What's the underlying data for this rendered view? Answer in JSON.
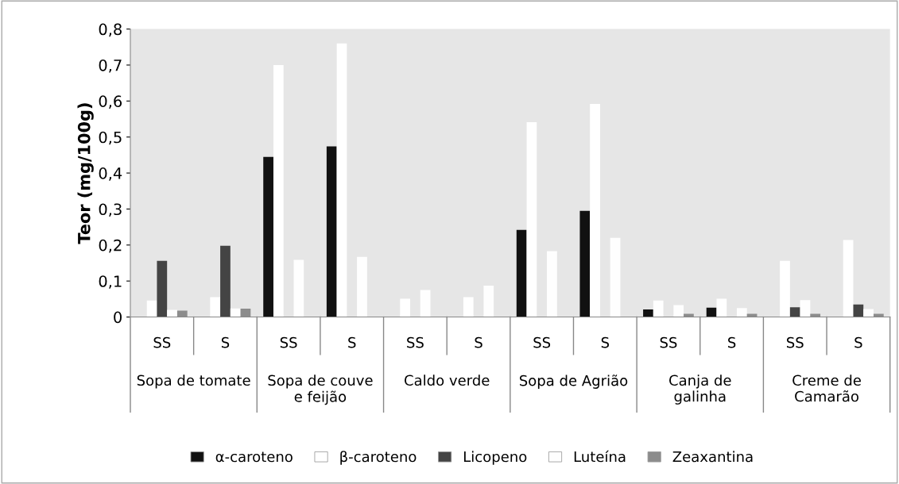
{
  "chart_data": {
    "type": "bar",
    "ylabel": "Teor (mg/100g)",
    "categories": [
      "SS",
      "S",
      "SS",
      "S",
      "SS",
      "S",
      "SS",
      "S",
      "SS",
      "S",
      "SS",
      "S"
    ],
    "annotations": [
      "Sopa de tomate",
      "Sopa de couve e feijão",
      "Caldo verde",
      "Sopa de Agrião",
      "Canja de galinha",
      "Creme de Camarão"
    ],
    "series": [
      {
        "name": "α-caroteno",
        "color": "#111111",
        "values": [
          null,
          null,
          0.445,
          0.474,
          null,
          null,
          0.242,
          0.295,
          0.021,
          0.026,
          null,
          null
        ]
      },
      {
        "name": "β-caroteno",
        "color": "#ffffff",
        "values": [
          0.046,
          0.055,
          0.7,
          0.76,
          0.051,
          0.055,
          0.541,
          0.592,
          0.046,
          0.051,
          0.156,
          0.214
        ]
      },
      {
        "name": "Licopeno",
        "color": "#444444",
        "values": [
          0.156,
          0.198,
          null,
          null,
          null,
          null,
          null,
          null,
          null,
          null,
          0.027,
          0.035
        ]
      },
      {
        "name": "Luteína",
        "color": "#fefefe",
        "values": [
          0.02,
          0.024,
          0.159,
          0.167,
          0.075,
          0.087,
          0.183,
          0.22,
          0.033,
          0.025,
          0.047,
          0.022
        ]
      },
      {
        "name": "Zeaxantina",
        "color": "#8c8c8c",
        "values": [
          0.018,
          0.023,
          null,
          null,
          null,
          null,
          null,
          null,
          0.009,
          0.009,
          0.009,
          0.009
        ]
      }
    ],
    "ylim": [
      0,
      0.8
    ],
    "yticks": [
      0,
      {
        "value": 0.1,
        "label": "0,1"
      },
      {
        "value": 0.2,
        "label": "0,2"
      },
      {
        "value": 0.3,
        "label": "0,3"
      },
      {
        "value": 0.4,
        "label": "0,4"
      },
      {
        "value": 0.5,
        "label": "0,5"
      },
      {
        "value": 0.6,
        "label": "0,6"
      },
      {
        "value": 0.7,
        "label": "0,7"
      },
      {
        "value": 0.8,
        "label": "0,8"
      }
    ],
    "grid": false,
    "legend": "bottom"
  }
}
